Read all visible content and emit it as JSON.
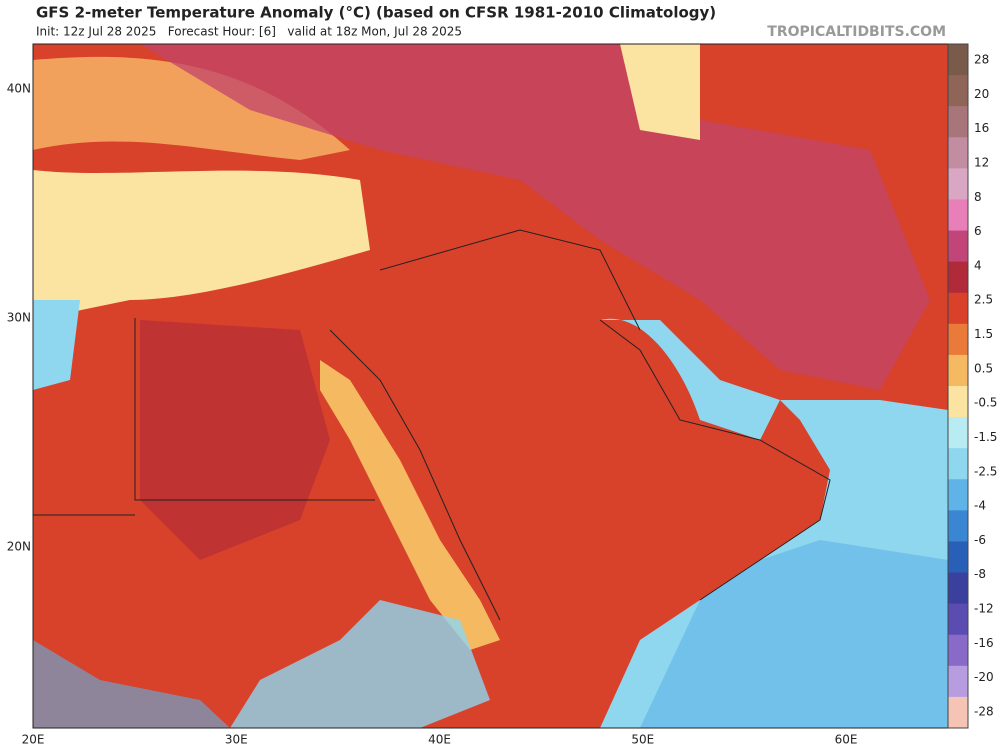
{
  "header": {
    "title": "GFS 2-meter Temperature Anomaly (°C) (based on CFSR 1981-2010 Climatology)",
    "subtitle": "Init: 12z Jul 28 2025   Forecast Hour: [6]   valid at 18z Mon, Jul 28 2025",
    "source": "TROPICALTIDBITS.COM"
  },
  "map": {
    "lat_labels": [
      "40N",
      "30N",
      "20N"
    ],
    "lon_labels": [
      "20E",
      "30E",
      "40E",
      "50E",
      "60E"
    ]
  },
  "colorbar": {
    "labels": [
      "28",
      "20",
      "16",
      "12",
      "8",
      "6",
      "4",
      "2.5",
      "1.5",
      "0.5",
      "-0.5",
      "-1.5",
      "-2.5",
      "-4",
      "-6",
      "-8",
      "-12",
      "-16",
      "-20",
      "-28"
    ],
    "colors": [
      "#7a5a4a",
      "#8f6557",
      "#a8767a",
      "#c28da0",
      "#d9a6c4",
      "#e97fb8",
      "#c2457a",
      "#b02a3a",
      "#d9412a",
      "#ea7a3a",
      "#f5b961",
      "#fbe3a1",
      "#b8ecf2",
      "#8fd6ef",
      "#5fb3e6",
      "#3a86d3",
      "#2a5fb8",
      "#3b3f9e",
      "#5a4cb0",
      "#8a6ac9",
      "#b89ce0",
      "#f5c4b5"
    ]
  }
}
